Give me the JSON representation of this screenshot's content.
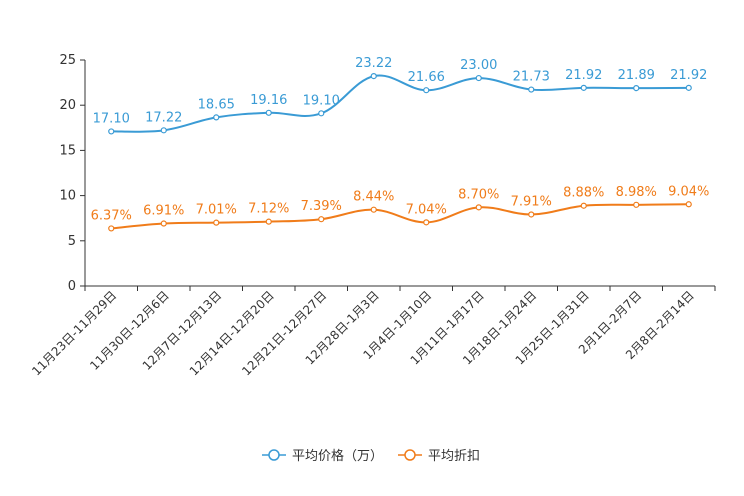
{
  "chart_data": {
    "type": "line",
    "title": "",
    "xlabel": "",
    "ylabel": "",
    "ylim": [
      0,
      25
    ],
    "yticks": [
      0,
      5,
      10,
      15,
      20,
      25
    ],
    "categories": [
      "11月23日-11月29日",
      "11月30日-12月6日",
      "12月7日-12月13日",
      "12月14日-12月20日",
      "12月21日-12月27日",
      "12月28日-1月3日",
      "1月4日-1月10日",
      "1月11日-1月17日",
      "1月18日-1月24日",
      "1月25日-1月31日",
      "2月1日-2月7日",
      "2月8日-2月14日"
    ],
    "series": [
      {
        "name": "平均价格（万）",
        "color": "#3a9bd5",
        "values": [
          17.1,
          17.22,
          18.65,
          19.16,
          19.1,
          23.22,
          21.66,
          23.0,
          21.73,
          21.92,
          21.89,
          21.92
        ],
        "labels": [
          "17.10",
          "17.22",
          "18.65",
          "19.16",
          "19.10",
          "23.22",
          "21.66",
          "23.00",
          "21.73",
          "21.92",
          "21.89",
          "21.92"
        ]
      },
      {
        "name": "平均折扣",
        "color": "#f07c1a",
        "values": [
          6.37,
          6.91,
          7.01,
          7.12,
          7.39,
          8.44,
          7.04,
          8.7,
          7.91,
          8.88,
          8.98,
          9.04
        ],
        "labels": [
          "6.37%",
          "6.91%",
          "7.01%",
          "7.12%",
          "7.39%",
          "8.44%",
          "7.04%",
          "8.70%",
          "7.91%",
          "8.88%",
          "8.98%",
          "9.04%"
        ]
      }
    ],
    "legend_position": "bottom-center"
  }
}
